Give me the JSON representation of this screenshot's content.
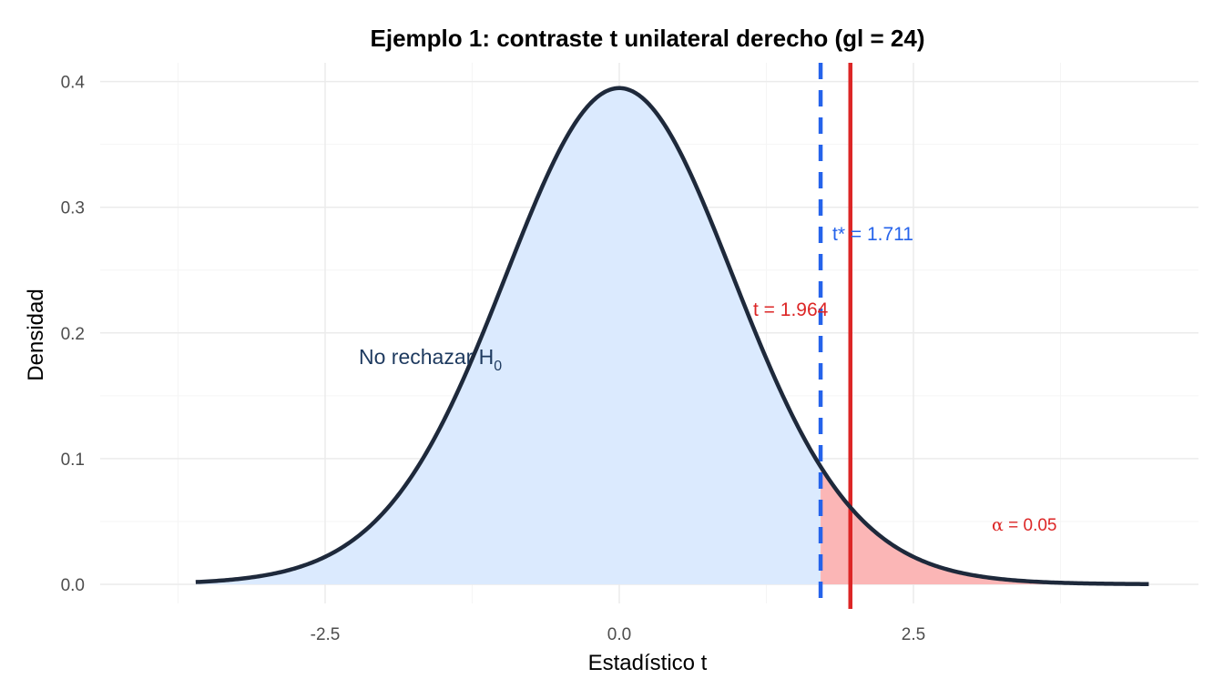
{
  "chart_data": {
    "type": "area",
    "title": "Ejemplo 1: contraste t unilateral derecho (gl = 24)",
    "xlabel": "Estadístico t",
    "ylabel": "Densidad",
    "df": 24,
    "xlim": [
      -4.5,
      5.5
    ],
    "x_domain": [
      -3.6,
      4.5
    ],
    "ylim": [
      0,
      0.4
    ],
    "x_ticks": [
      -2.5,
      0.0,
      2.5
    ],
    "x_tick_labels": [
      "-2.5",
      "0.0",
      "2.5"
    ],
    "y_ticks": [
      0.0,
      0.1,
      0.2,
      0.3,
      0.4
    ],
    "y_tick_labels": [
      "0.0",
      "0.1",
      "0.2",
      "0.3",
      "0.4"
    ],
    "grid": true,
    "critical_value": 1.711,
    "t_observed": 1.964,
    "alpha": 0.05,
    "colors": {
      "curve": "#1e293b",
      "accept_fill": "#dbeafe",
      "reject_fill": "#fbb6b6",
      "critical_line": "#2563eb",
      "observed_line": "#dc2626",
      "accept_text": "#1e3a5f",
      "grid_major": "#ebebeb",
      "grid_minor": "#f5f5f5"
    },
    "annotations": {
      "critical": "t* = 1.711",
      "observed": "t = 1.964",
      "accept_region": "No rechazar H",
      "accept_region_sub": "0",
      "alpha_symbol": "α",
      "alpha_text": " = 0.05"
    }
  }
}
